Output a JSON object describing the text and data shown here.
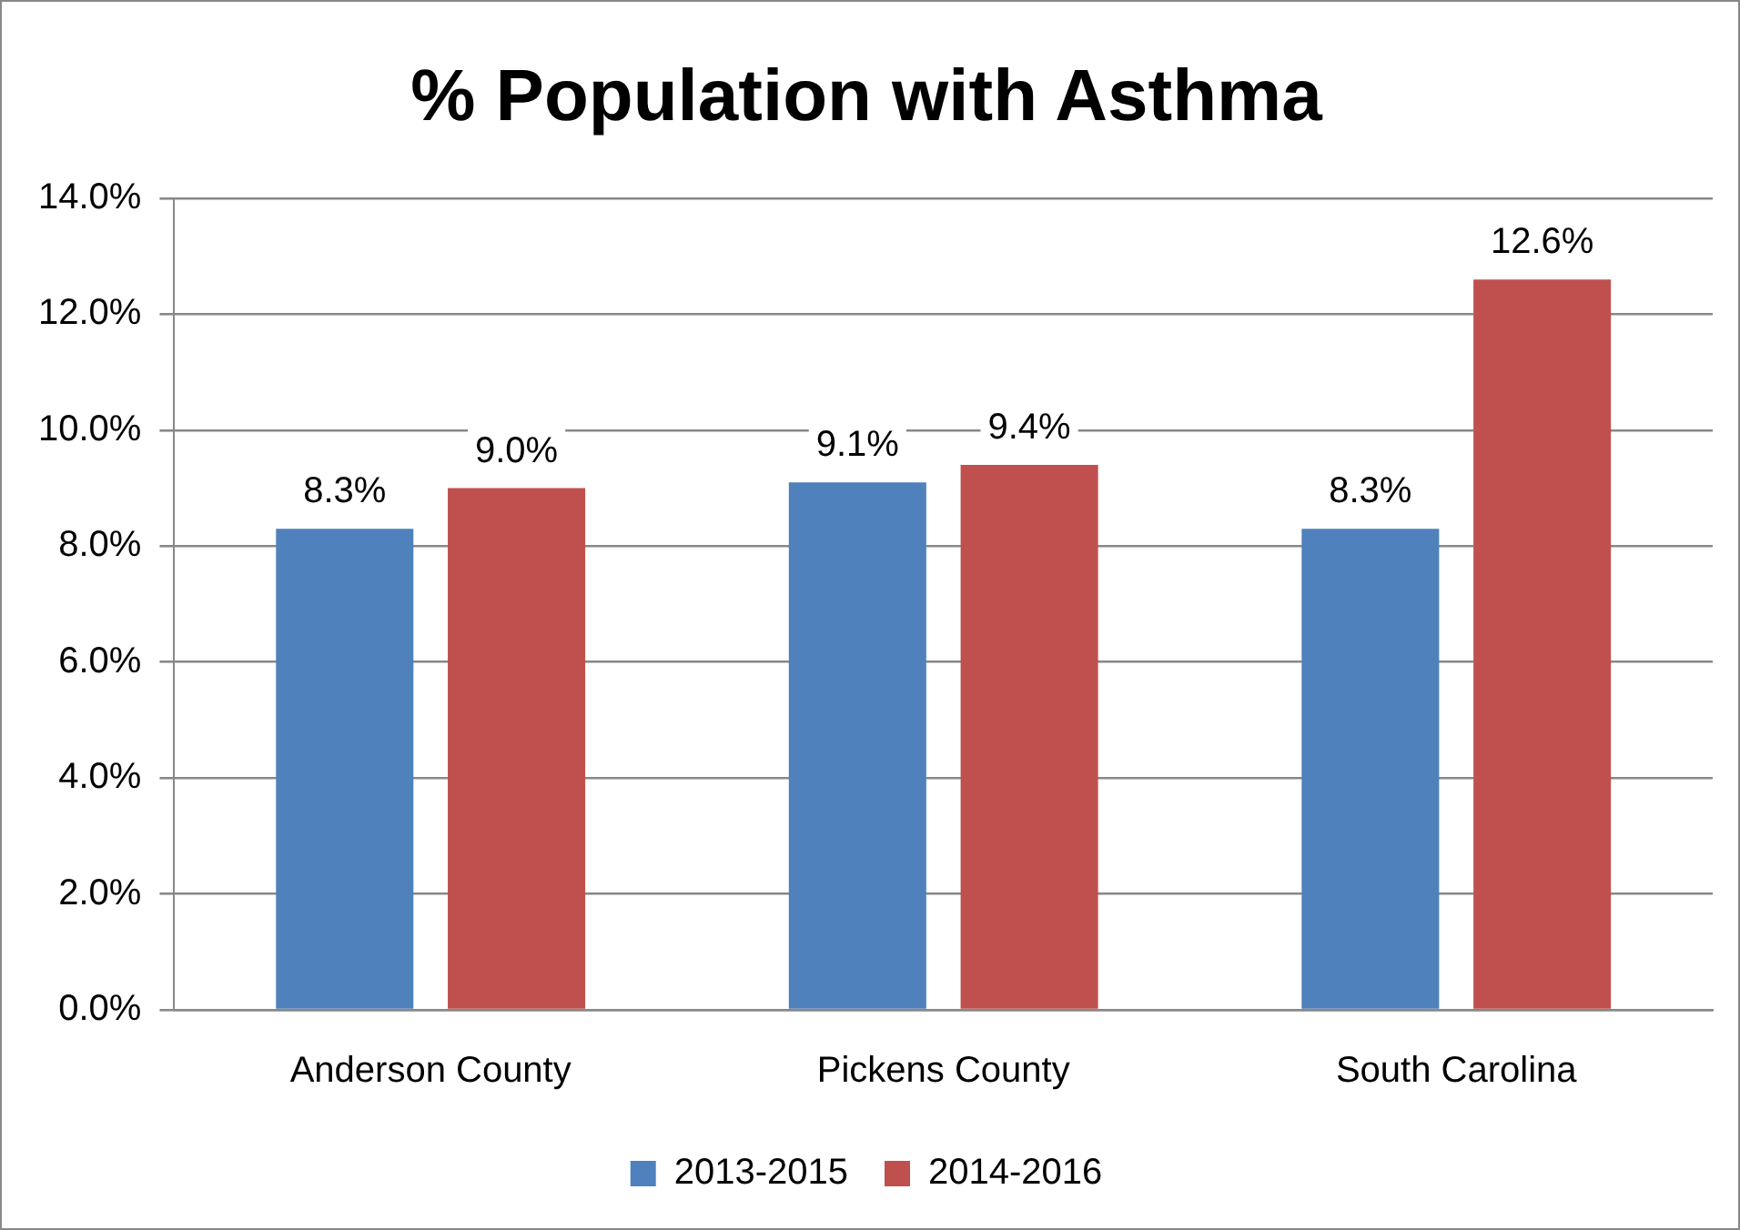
{
  "chart_data": {
    "type": "bar",
    "title": "% Population with Asthma",
    "categories": [
      "Anderson County",
      "Pickens County",
      "South Carolina"
    ],
    "series": [
      {
        "name": "2013-2015",
        "color": "#4f81bd",
        "values": [
          8.3,
          9.1,
          8.3
        ],
        "value_labels": [
          "8.3%",
          "9.1%",
          "8.3%"
        ]
      },
      {
        "name": "2014-2016",
        "color": "#c0504d",
        "values": [
          9.0,
          9.4,
          12.6
        ],
        "value_labels": [
          "9.0%",
          "9.4%",
          "12.6%"
        ]
      }
    ],
    "ylim": [
      0,
      14
    ],
    "yticks": [
      {
        "value": 0,
        "label": "0.0%"
      },
      {
        "value": 2,
        "label": "2.0%"
      },
      {
        "value": 4,
        "label": "4.0%"
      },
      {
        "value": 6,
        "label": "6.0%"
      },
      {
        "value": 8,
        "label": "8.0%"
      },
      {
        "value": 10,
        "label": "10.0%"
      },
      {
        "value": 12,
        "label": "12.0%"
      },
      {
        "value": 14,
        "label": "14.0%"
      }
    ],
    "grid": "y",
    "legend": "bottom"
  }
}
